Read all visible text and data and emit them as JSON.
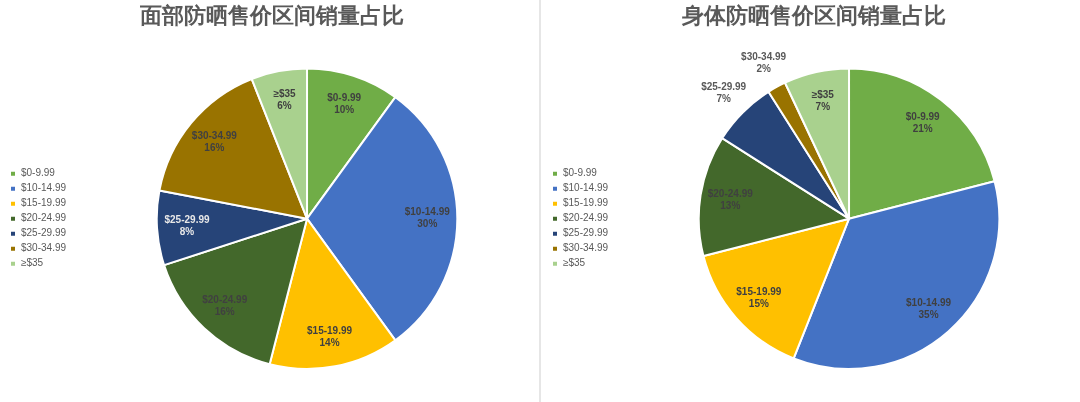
{
  "chart_data": [
    {
      "type": "pie",
      "title": "面部防晒售价区间销量占比",
      "categories": [
        "$0-9.99",
        "$10-14.99",
        "$15-19.99",
        "$20-24.99",
        "$25-29.99",
        "$30-34.99",
        "≥$35"
      ],
      "values": [
        10,
        30,
        14,
        16,
        8,
        16,
        6
      ],
      "colors": [
        "#70ad47",
        "#4472c4",
        "#ffc000",
        "#43682b",
        "#264478",
        "#997300",
        "#a9d18e"
      ],
      "value_labels": [
        "10%",
        "30%",
        "14%",
        "16%",
        "8%",
        "16%",
        "6%"
      ],
      "legend": "left"
    },
    {
      "type": "pie",
      "title": "身体防晒售价区间销量占比",
      "categories": [
        "$0-9.99",
        "$10-14.99",
        "$15-19.99",
        "$20-24.99",
        "$25-29.99",
        "$30-34.99",
        "≥$35"
      ],
      "values": [
        21,
        35,
        15,
        13,
        7,
        2,
        7
      ],
      "colors": [
        "#70ad47",
        "#4472c4",
        "#ffc000",
        "#43682b",
        "#264478",
        "#997300",
        "#a9d18e"
      ],
      "value_labels": [
        "21%",
        "35%",
        "15%",
        "13%",
        "7%",
        "2%",
        "7%"
      ],
      "legend": "left"
    }
  ]
}
